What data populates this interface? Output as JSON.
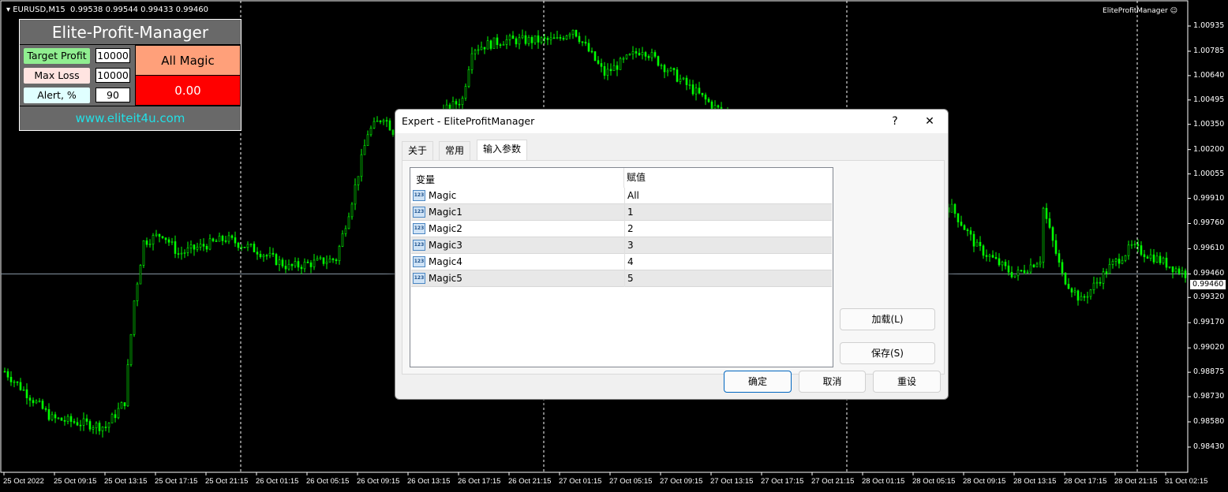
{
  "chart_header": {
    "symbol": "EURUSD,M15",
    "ohlc": "0.99538 0.99544 0.99433 0.99460",
    "ea_label": "EliteProfitManager",
    "ea_icon": "smiley-icon"
  },
  "price_axis": {
    "labels": [
      "1.00935",
      "1.00785",
      "1.00640",
      "1.00495",
      "1.00350",
      "1.00200",
      "1.00055",
      "0.99910",
      "0.99760",
      "0.99610",
      "0.99460",
      "0.99320",
      "0.99170",
      "0.99020",
      "0.98875",
      "0.98730",
      "0.98580",
      "0.98430"
    ],
    "current": "0.99460",
    "max": 1.00935,
    "min": 0.9843
  },
  "time_axis": {
    "labels": [
      "25 Oct 2022",
      "25 Oct 09:15",
      "25 Oct 13:15",
      "25 Oct 17:15",
      "25 Oct 21:15",
      "26 Oct 01:15",
      "26 Oct 05:15",
      "26 Oct 09:15",
      "26 Oct 13:15",
      "26 Oct 17:15",
      "26 Oct 21:15",
      "27 Oct 01:15",
      "27 Oct 05:15",
      "27 Oct 09:15",
      "27 Oct 13:15",
      "27 Oct 17:15",
      "27 Oct 21:15",
      "28 Oct 01:15",
      "28 Oct 05:15",
      "28 Oct 09:15",
      "28 Oct 13:15",
      "28 Oct 17:15",
      "28 Oct 21:15",
      "31 Oct 02:15"
    ]
  },
  "price_path": [
    [
      0,
      0.9888
    ],
    [
      15,
      0.986
    ],
    [
      32,
      0.9855
    ],
    [
      38,
      0.987
    ],
    [
      41,
      0.993
    ],
    [
      44,
      0.9965
    ],
    [
      50,
      0.997
    ],
    [
      55,
      0.9958
    ],
    [
      70,
      0.9967
    ],
    [
      80,
      0.996
    ],
    [
      90,
      0.995
    ],
    [
      105,
      0.9955
    ],
    [
      110,
      0.999
    ],
    [
      115,
      1.003
    ],
    [
      120,
      1.004
    ],
    [
      125,
      1.0025
    ],
    [
      145,
      1.005
    ],
    [
      148,
      1.008
    ],
    [
      158,
      1.0085
    ],
    [
      175,
      1.0085
    ],
    [
      180,
      1.0092
    ],
    [
      190,
      1.0065
    ],
    [
      202,
      1.008
    ],
    [
      215,
      1.006
    ],
    [
      225,
      1.0045
    ],
    [
      260,
      1.001
    ],
    [
      300,
      0.9985
    ],
    [
      308,
      0.9962
    ],
    [
      320,
      0.9945
    ],
    [
      328,
      0.9955
    ],
    [
      329,
      0.9985
    ],
    [
      335,
      0.9945
    ],
    [
      341,
      0.993
    ],
    [
      350,
      0.995
    ],
    [
      357,
      0.9962
    ],
    [
      365,
      0.9955
    ],
    [
      374,
      0.9946
    ]
  ],
  "colors": {
    "candle": "#00ff00",
    "background": "#000000",
    "panel": "#696969",
    "target": "#90ee90",
    "maxloss": "#ffe4e1",
    "alert": "#e0ffff",
    "magic": "#ffa07a",
    "pnl": "#ff0000",
    "link": "#22e0e6"
  },
  "panel": {
    "title": "Elite-Profit-Manager",
    "target_label": "Target Profit",
    "target_value": "10000",
    "maxloss_label": "Max Loss",
    "maxloss_value": "10000",
    "alert_label": "Alert, %",
    "alert_value": "90",
    "magic_label": "All Magic",
    "pnl": "0.00",
    "website": "www.eliteit4u.com"
  },
  "dialog": {
    "title": "Expert - EliteProfitManager",
    "help": "?",
    "close": "✕",
    "tabs": [
      {
        "label": "关于"
      },
      {
        "label": "常用"
      },
      {
        "label": "输入参数"
      }
    ],
    "columns": [
      "变量",
      "赋值"
    ],
    "rows": [
      {
        "name": "Magic",
        "value": "All"
      },
      {
        "name": "Magic1",
        "value": "1"
      },
      {
        "name": "Magic2",
        "value": "2"
      },
      {
        "name": "Magic3",
        "value": "3"
      },
      {
        "name": "Magic4",
        "value": "4"
      },
      {
        "name": "Magic5",
        "value": "5"
      }
    ],
    "row_icon": "123",
    "load": "加载(L)",
    "save": "保存(S)",
    "ok": "确定",
    "cancel": "取消",
    "reset": "重设"
  }
}
